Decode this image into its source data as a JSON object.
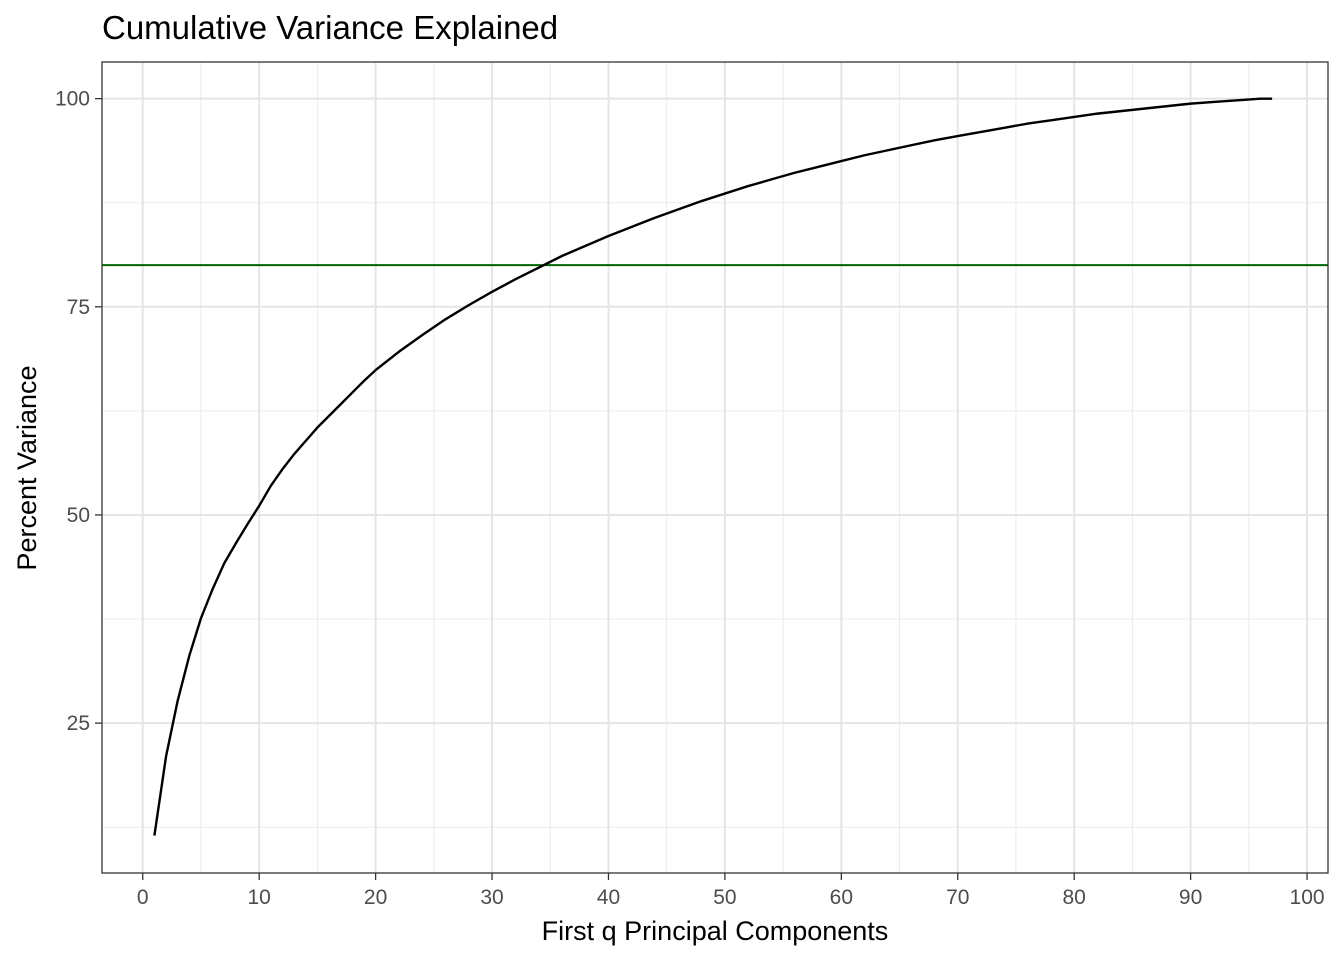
{
  "chart_data": {
    "type": "line",
    "title": "Cumulative Variance Explained",
    "xlabel": "First q Principal Components",
    "ylabel": "Percent Variance",
    "xlim": [
      -3.5,
      101.8
    ],
    "ylim": [
      7,
      104.4
    ],
    "x_ticks": [
      0,
      10,
      20,
      30,
      40,
      50,
      60,
      70,
      80,
      90,
      100
    ],
    "y_ticks": [
      25,
      50,
      75,
      100
    ],
    "x_minor_ticks": [
      5,
      15,
      25,
      35,
      45,
      55,
      65,
      75,
      85,
      95
    ],
    "y_minor_ticks": [
      12.5,
      37.5,
      62.5,
      87.5
    ],
    "grid": true,
    "series": [
      {
        "color": "#000000",
        "x": [
          1,
          2,
          3,
          4,
          5,
          6,
          7,
          8,
          9,
          10,
          11,
          12,
          13,
          14,
          15,
          16,
          17,
          18,
          19,
          20,
          22,
          24,
          26,
          28,
          30,
          32,
          34,
          36,
          38,
          40,
          42,
          44,
          46,
          48,
          50,
          52,
          54,
          56,
          58,
          60,
          62,
          64,
          66,
          68,
          70,
          72,
          74,
          76,
          78,
          80,
          82,
          84,
          86,
          88,
          90,
          92,
          94,
          96,
          97
        ],
        "y": [
          11.5,
          21,
          27.7,
          33.1,
          37.6,
          41.1,
          44.2,
          46.6,
          48.9,
          51.1,
          53.5,
          55.5,
          57.3,
          58.9,
          60.5,
          61.9,
          63.3,
          64.7,
          66.1,
          67.4,
          69.6,
          71.6,
          73.5,
          75.2,
          76.8,
          78.3,
          79.7,
          81.1,
          82.3,
          83.5,
          84.6,
          85.7,
          86.7,
          87.7,
          88.6,
          89.5,
          90.3,
          91.1,
          91.8,
          92.5,
          93.2,
          93.8,
          94.4,
          95,
          95.5,
          96,
          96.5,
          97,
          97.4,
          97.8,
          98.2,
          98.5,
          98.8,
          99.1,
          99.4,
          99.6,
          99.8,
          100,
          100
        ]
      }
    ],
    "reference_lines": [
      {
        "orientation": "horizontal",
        "value": 80,
        "color": "#006400"
      }
    ]
  }
}
